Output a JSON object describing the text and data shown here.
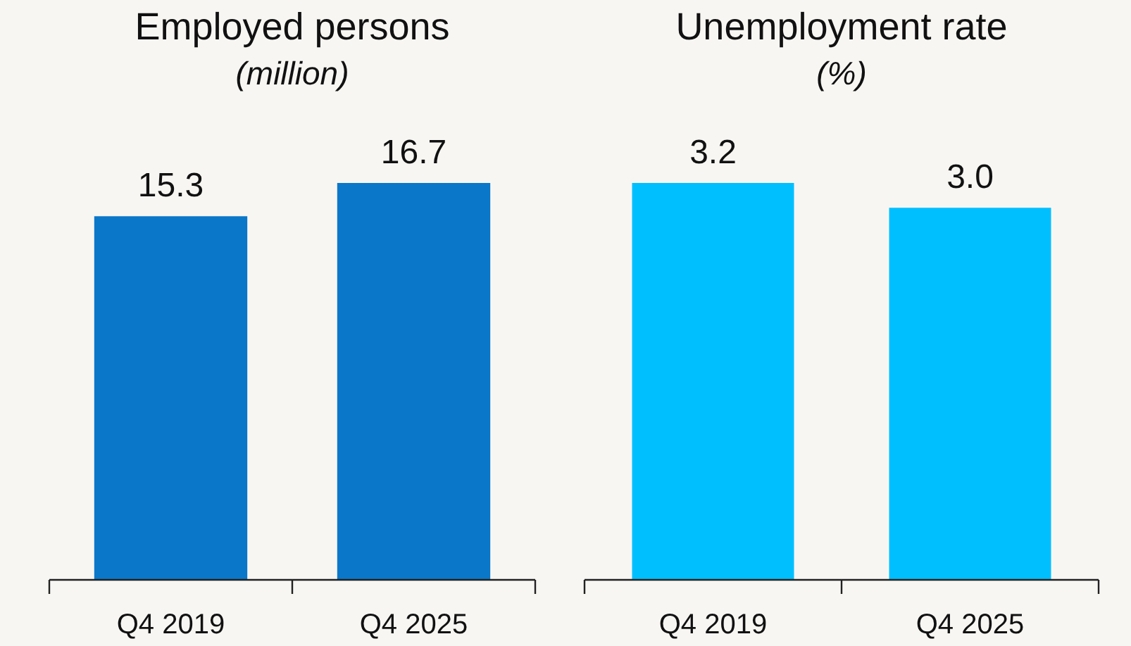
{
  "chart_data": [
    {
      "type": "bar",
      "title": "Employed persons",
      "subtitle": "(million)",
      "categories": [
        "Q4 2019",
        "Q4 2025"
      ],
      "values": [
        15.3,
        16.7
      ],
      "value_labels": [
        "15.3",
        "16.7"
      ],
      "color": "#0a77c9",
      "tick_labels": "x"
    },
    {
      "type": "bar",
      "title": "Unemployment rate",
      "subtitle": "(%)",
      "categories": [
        "Q4 2019",
        "Q4 2025"
      ],
      "values": [
        3.2,
        3.0
      ],
      "value_labels": [
        "3.2",
        "3.0"
      ],
      "color": "#00bfff",
      "tick_labels": "x"
    }
  ]
}
